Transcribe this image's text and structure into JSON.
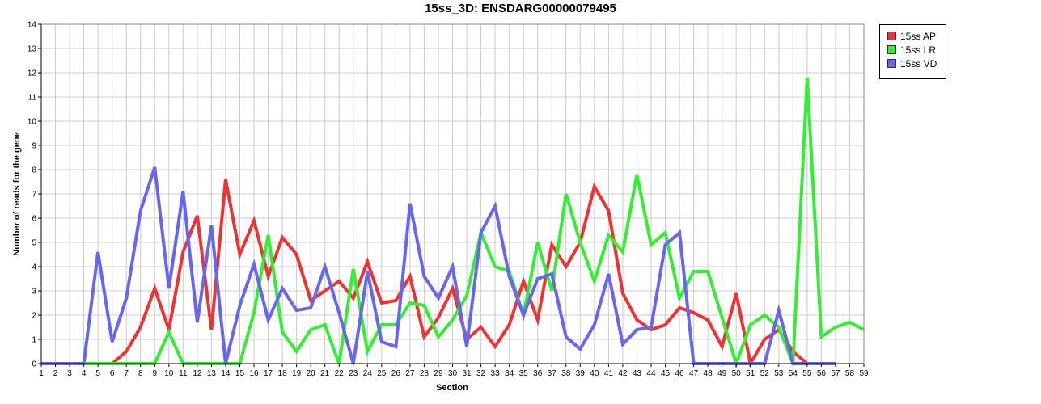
{
  "chart_data": {
    "type": "line",
    "title": "15ss_3D: ENSDARG00000079495",
    "xlabel": "Section",
    "ylabel": "Number of reads for the gene",
    "x": [
      1,
      2,
      3,
      4,
      5,
      6,
      7,
      8,
      9,
      10,
      11,
      12,
      13,
      14,
      15,
      16,
      17,
      18,
      19,
      20,
      21,
      22,
      23,
      24,
      25,
      26,
      27,
      28,
      29,
      30,
      31,
      32,
      33,
      34,
      35,
      36,
      37,
      38,
      39,
      40,
      41,
      42,
      43,
      44,
      45,
      46,
      47,
      48,
      49,
      50,
      51,
      52,
      53,
      54,
      55,
      56,
      57,
      58,
      59
    ],
    "xlim": [
      1,
      59
    ],
    "ylim": [
      0,
      14
    ],
    "yticks": [
      0,
      1,
      2,
      3,
      4,
      5,
      6,
      7,
      8,
      9,
      10,
      11,
      12,
      13,
      14
    ],
    "grid": true,
    "legend_position": "right",
    "series": [
      {
        "name": "15ss AP",
        "color": "#ee3333",
        "values": [
          0,
          0,
          0,
          0,
          0,
          0,
          0.5,
          1.5,
          3.1,
          1.4,
          4.6,
          6.1,
          1.4,
          7.6,
          4.5,
          5.9,
          3.6,
          5.2,
          4.5,
          2.6,
          3.0,
          3.4,
          2.7,
          4.2,
          2.5,
          2.6,
          3.6,
          1.1,
          1.9,
          3.1,
          1.0,
          1.5,
          0.7,
          1.6,
          3.4,
          1.8,
          4.9,
          4.0,
          5.0,
          7.3,
          6.3,
          2.9,
          1.8,
          1.4,
          1.6,
          2.3,
          2.1,
          1.8,
          0.7,
          2.9,
          0,
          1.0,
          1.4,
          0.5,
          0,
          null,
          null,
          null,
          null
        ]
      },
      {
        "name": "15ss LR",
        "color": "#33ee33",
        "values": [
          0,
          0,
          0,
          0,
          0,
          0,
          0,
          0,
          0,
          1.3,
          0,
          0,
          0,
          0,
          0,
          2.1,
          5.3,
          1.3,
          0.5,
          1.4,
          1.6,
          0,
          3.9,
          0.5,
          1.6,
          1.6,
          2.5,
          2.4,
          1.1,
          1.8,
          2.8,
          5.4,
          4.0,
          3.8,
          2.0,
          5.0,
          3.0,
          7.0,
          5.0,
          3.4,
          5.3,
          4.6,
          7.8,
          4.9,
          5.4,
          2.7,
          3.8,
          3.8,
          1.9,
          0,
          1.6,
          2.0,
          1.5,
          0,
          11.8,
          1.1,
          1.5,
          1.7,
          1.4
        ]
      },
      {
        "name": "15ss VD",
        "color": "#6666ee",
        "values": [
          0,
          0,
          0,
          0,
          4.6,
          0.9,
          2.7,
          6.3,
          8.1,
          3.1,
          7.1,
          1.7,
          5.7,
          0,
          2.4,
          4.1,
          1.8,
          3.1,
          2.2,
          2.3,
          4.0,
          2.1,
          0,
          3.8,
          0.9,
          0.7,
          6.6,
          3.6,
          2.7,
          4.0,
          0.7,
          5.4,
          6.5,
          3.6,
          2.0,
          3.5,
          3.7,
          1.1,
          0.6,
          1.6,
          3.7,
          0.8,
          1.4,
          1.5,
          4.9,
          5.4,
          0,
          0,
          0,
          0,
          0,
          0,
          2.2,
          0,
          0,
          0,
          0,
          null,
          null
        ]
      }
    ]
  }
}
